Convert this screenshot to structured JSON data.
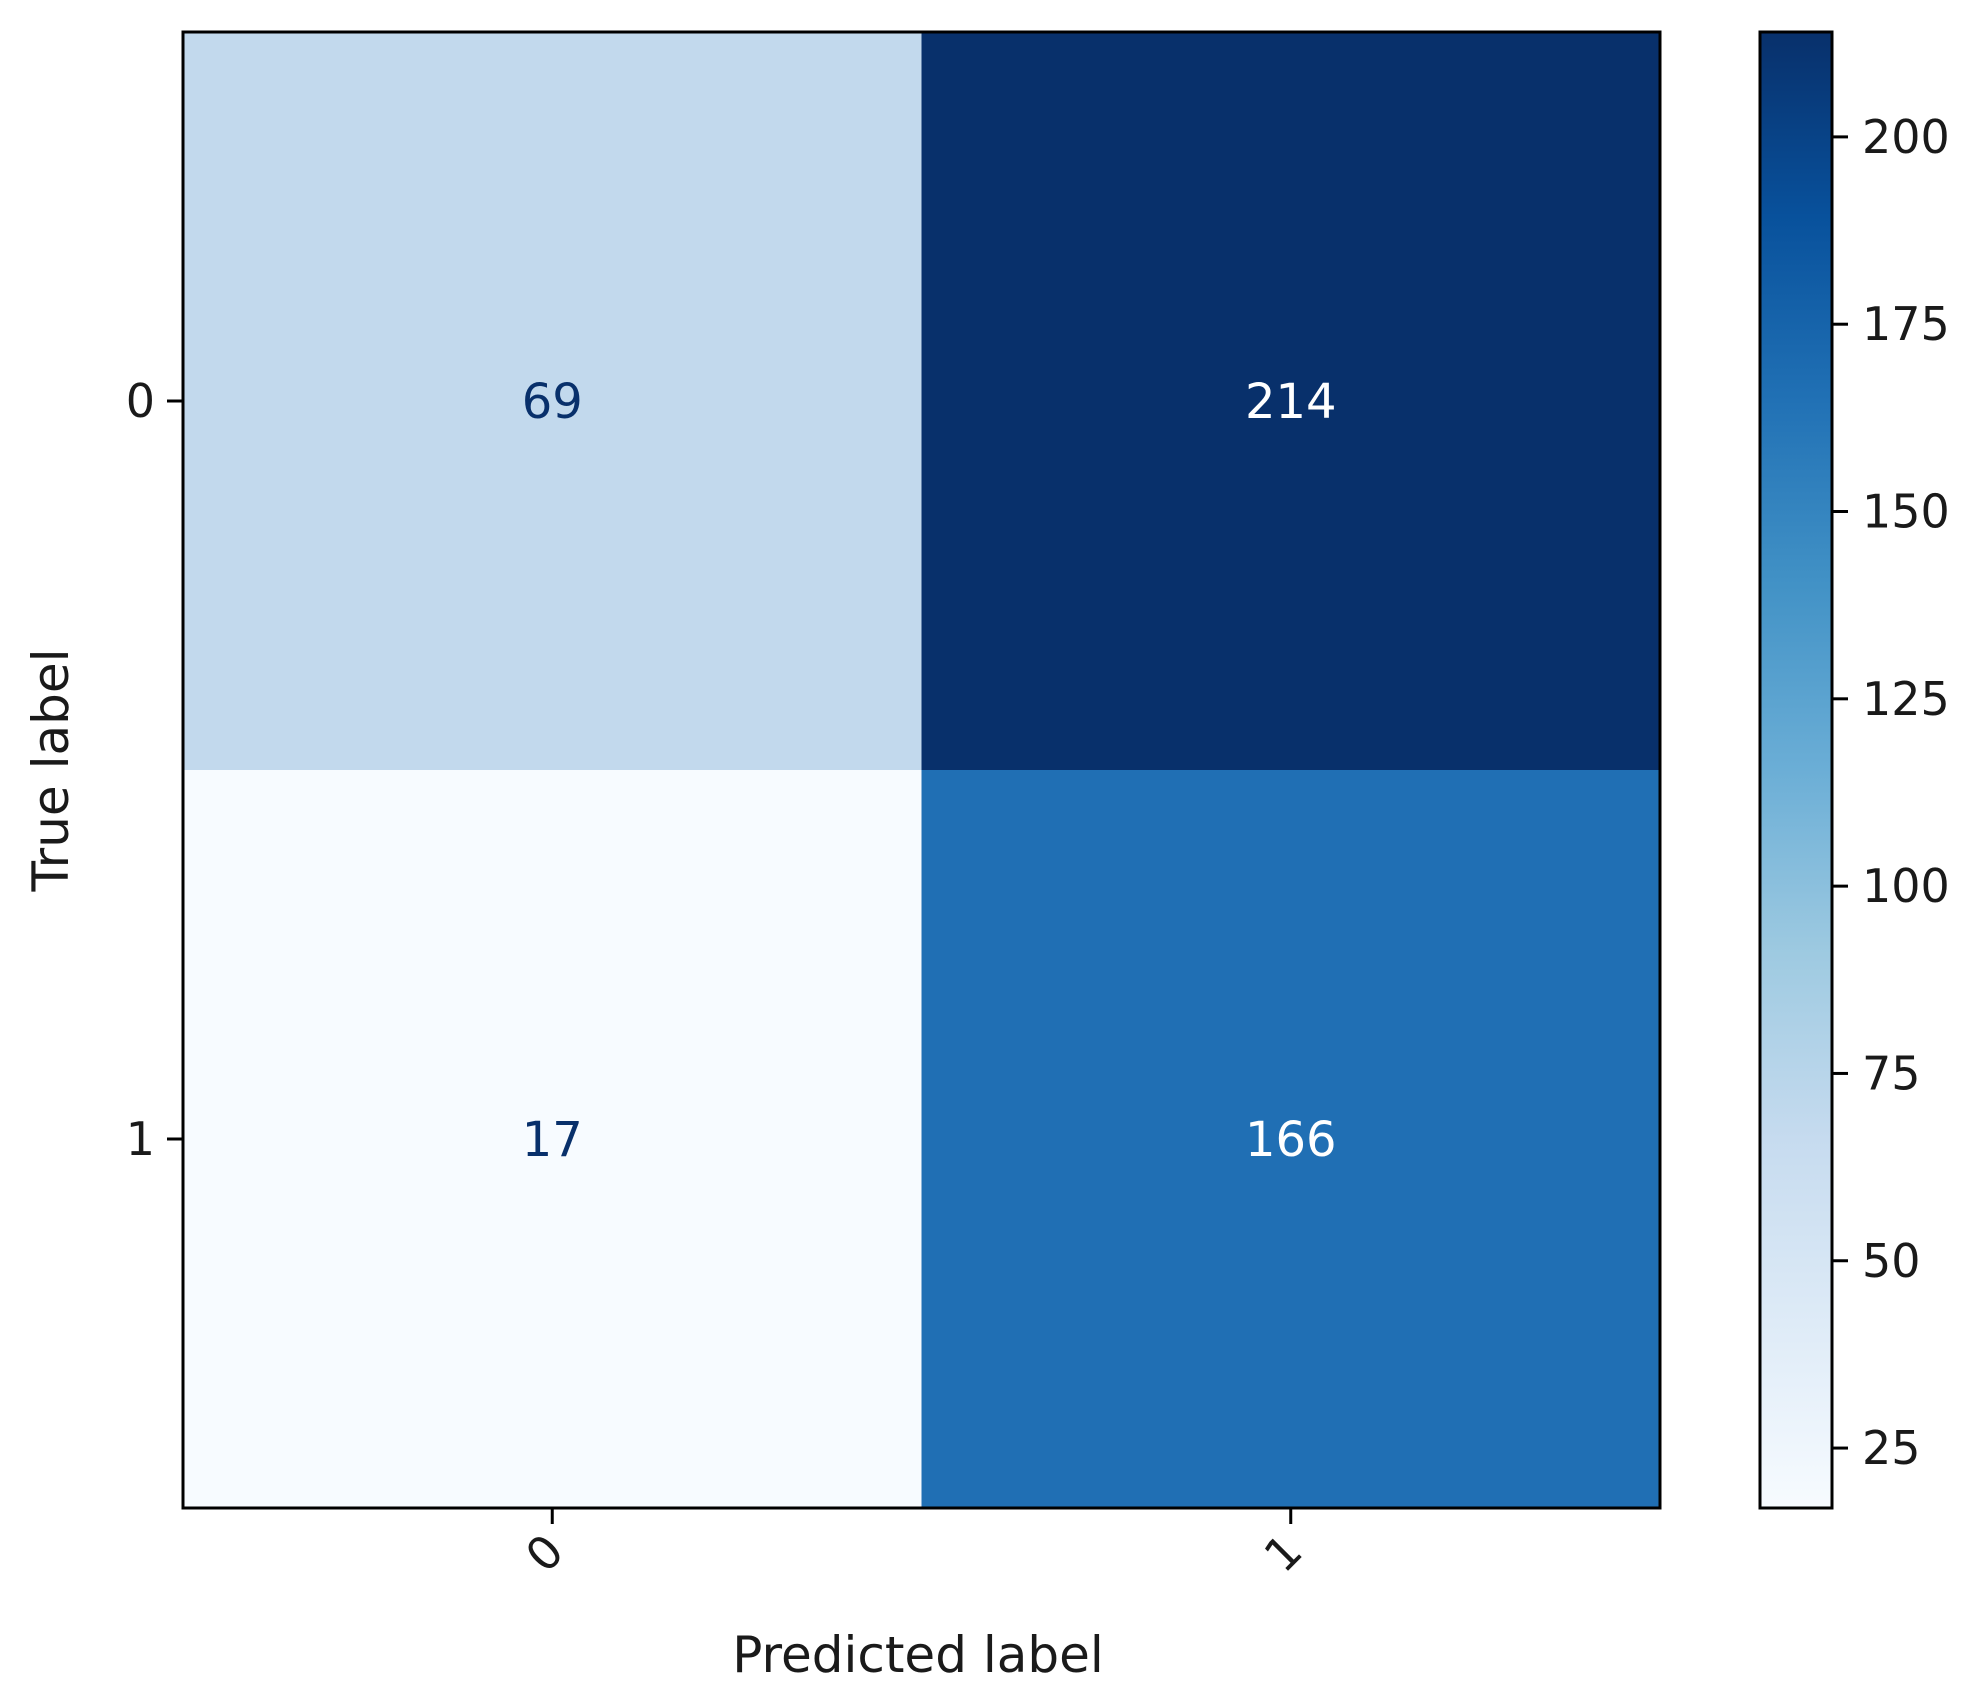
{
  "chart_data": {
    "type": "heatmap",
    "title": "",
    "xlabel": "Predicted label",
    "ylabel": "True label",
    "x_categories": [
      "0",
      "1"
    ],
    "y_categories": [
      "0",
      "1"
    ],
    "values": [
      [
        69,
        214
      ],
      [
        17,
        166
      ]
    ],
    "colormap": "Blues",
    "colorbar": {
      "range": [
        17,
        214
      ],
      "ticks": [
        25,
        50,
        75,
        100,
        125,
        150,
        175,
        200
      ]
    },
    "grid": false,
    "legend": "colorbar-right"
  }
}
